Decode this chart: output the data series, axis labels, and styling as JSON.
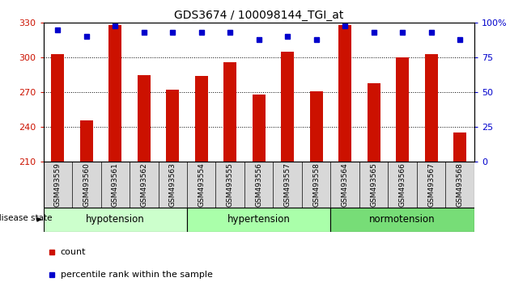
{
  "title": "GDS3674 / 100098144_TGI_at",
  "samples": [
    "GSM493559",
    "GSM493560",
    "GSM493561",
    "GSM493562",
    "GSM493563",
    "GSM493554",
    "GSM493555",
    "GSM493556",
    "GSM493557",
    "GSM493558",
    "GSM493564",
    "GSM493565",
    "GSM493566",
    "GSM493567",
    "GSM493568"
  ],
  "counts": [
    303,
    246,
    328,
    285,
    272,
    284,
    296,
    268,
    305,
    271,
    328,
    278,
    300,
    303,
    235
  ],
  "percentiles": [
    95,
    90,
    98,
    93,
    93,
    93,
    93,
    88,
    90,
    88,
    98,
    93,
    93,
    93,
    88
  ],
  "groups": [
    {
      "label": "hypotension",
      "start": 0,
      "end": 5,
      "color": "#ccffcc"
    },
    {
      "label": "hypertension",
      "start": 5,
      "end": 10,
      "color": "#aaffaa"
    },
    {
      "label": "normotension",
      "start": 10,
      "end": 15,
      "color": "#77dd77"
    }
  ],
  "ylim_left": [
    210,
    330
  ],
  "ylim_right": [
    0,
    100
  ],
  "yticks_left": [
    210,
    240,
    270,
    300,
    330
  ],
  "yticks_right": [
    0,
    25,
    50,
    75,
    100
  ],
  "bar_color": "#cc1100",
  "dot_color": "#0000cc",
  "bg_color": "#ffffff",
  "plot_bg": "#ffffff",
  "grid_color": "#000000",
  "disease_state_label": "disease state",
  "legend_count_label": "count",
  "legend_percentile_label": "percentile rank within the sample",
  "tick_bg": "#d8d8d8",
  "right_axis_label": "100%"
}
